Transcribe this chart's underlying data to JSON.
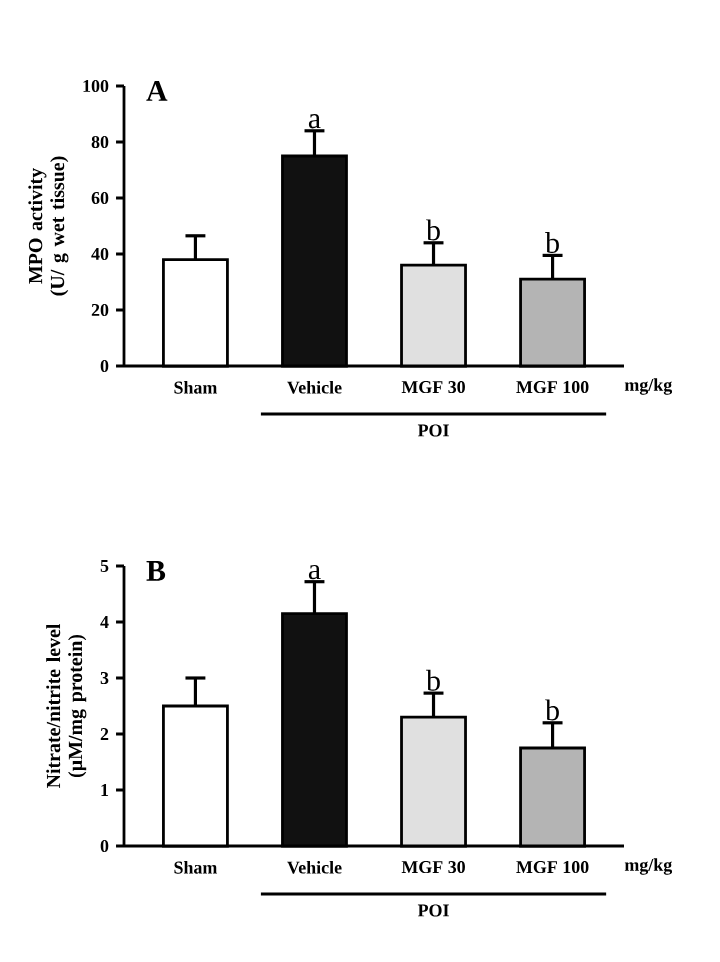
{
  "chart_data": [
    {
      "type": "bar",
      "title": "A",
      "ylabel": "MPO activity (U/ g wet tissue)",
      "categories": [
        "Sham",
        "Vehicle",
        "MGF 30",
        "MGF 100"
      ],
      "values": [
        38,
        75,
        36,
        31
      ],
      "errors": [
        [
          38,
          46.5
        ],
        [
          75,
          84
        ],
        [
          36,
          44
        ],
        [
          31,
          39.5
        ]
      ],
      "colors": [
        "#ffffff",
        "#111111",
        "#e0e0e0",
        "#b4b4b4"
      ],
      "ylim": [
        0,
        100
      ],
      "yticks": [
        0,
        20,
        40,
        60,
        80,
        100
      ],
      "annotations": [
        {
          "text": "a",
          "x": "Vehicle",
          "y": 84
        },
        {
          "text": "b",
          "x": "MGF 30",
          "y": 44
        },
        {
          "text": "b",
          "x": "MGF 100",
          "y": 39.5
        },
        "mg/kg",
        "POI"
      ]
    },
    {
      "type": "bar",
      "title": "B",
      "ylabel": "Nitrate/nitrite level (µM/mg protein)",
      "categories": [
        "Sham",
        "Vehicle",
        "MGF 30",
        "MGF 100"
      ],
      "values": [
        2.5,
        4.15,
        2.3,
        1.75
      ],
      "errors": [
        [
          2.5,
          3.0
        ],
        [
          4.15,
          4.72
        ],
        [
          2.3,
          2.73
        ],
        [
          1.75,
          2.2
        ]
      ],
      "colors": [
        "#ffffff",
        "#111111",
        "#e0e0e0",
        "#b4b4b4"
      ],
      "ylim": [
        0,
        5
      ],
      "yticks": [
        0,
        1,
        2,
        3,
        4,
        5
      ],
      "annotations": [
        {
          "text": "a",
          "x": "Vehicle",
          "y": 4.72
        },
        {
          "text": "b",
          "x": "MGF 30",
          "y": 2.73
        },
        {
          "text": "b",
          "x": "MGF 100",
          "y": 2.2
        },
        "mg/kg",
        "POI"
      ]
    }
  ]
}
